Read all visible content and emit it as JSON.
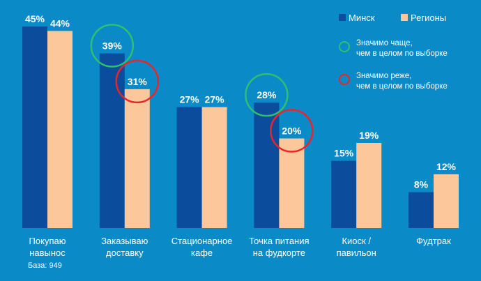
{
  "chart_data": {
    "type": "bar",
    "categories": [
      [
        "Покупаю",
        "навынос"
      ],
      [
        "Заказываю",
        "доставку"
      ],
      [
        "Стационарное",
        "кафе"
      ],
      [
        "Точка питания",
        "на фудкорте"
      ],
      [
        "Киоск /",
        "павильон"
      ],
      [
        "Фудтрак",
        ""
      ]
    ],
    "series": [
      {
        "name": "Минск",
        "color": "#0b4c9c",
        "values": [
          45,
          39,
          27,
          28,
          15,
          8
        ]
      },
      {
        "name": "Регионы",
        "color": "#fdc79c",
        "values": [
          44,
          31,
          27,
          20,
          19,
          12
        ]
      }
    ],
    "value_suffix": "%",
    "ylim": [
      0,
      45
    ],
    "highlights": [
      {
        "category": 1,
        "series": 0,
        "type": "higher"
      },
      {
        "category": 1,
        "series": 1,
        "type": "lower"
      },
      {
        "category": 3,
        "series": 0,
        "type": "higher"
      },
      {
        "category": 3,
        "series": 1,
        "type": "lower"
      }
    ],
    "legend_placement": "top-right"
  },
  "legend": {
    "minsk": "Минск",
    "regions": "Регионы",
    "higher_line1": "Значимо чаще,",
    "higher_line2": "чем в целом по выборке",
    "lower_line1": "Значимо реже,",
    "lower_line2": "чем в целом по выборке",
    "higher_color": "#2fbf71",
    "lower_color": "#e8262a"
  },
  "base": "База: 949"
}
